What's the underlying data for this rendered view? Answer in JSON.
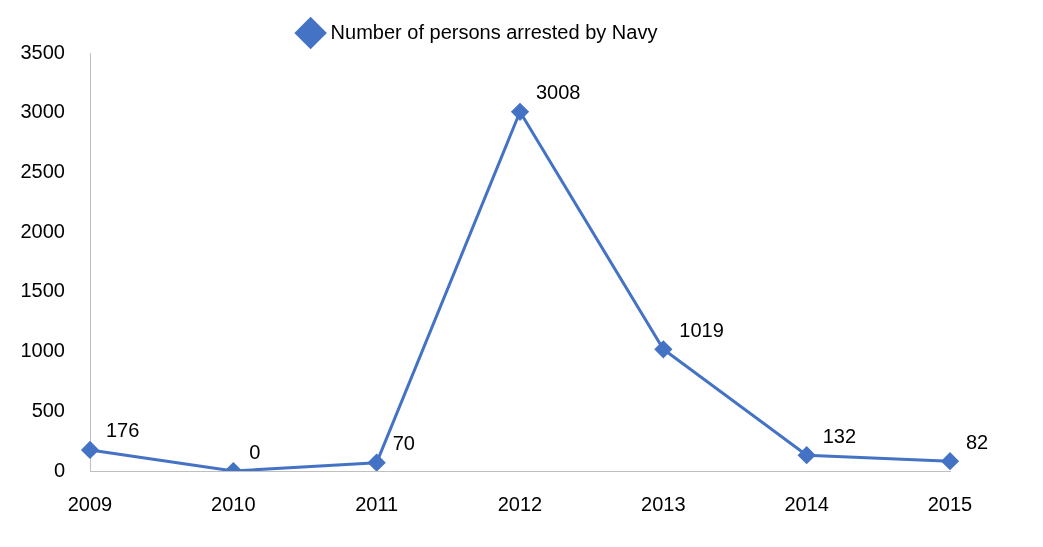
{
  "chart_data": {
    "type": "line",
    "categories": [
      "2009",
      "2010",
      "2011",
      "2012",
      "2013",
      "2014",
      "2015"
    ],
    "series": [
      {
        "name": "Number of persons arrested by Navy",
        "color": "#4472c4",
        "values": [
          176,
          0,
          70,
          3008,
          1019,
          132,
          82
        ]
      }
    ],
    "ylim": [
      0,
      3500
    ],
    "yticks": [
      0,
      500,
      1000,
      1500,
      2000,
      2500,
      3000,
      3500
    ],
    "grid": false,
    "legend": "top",
    "marker": "diamond",
    "line_style": "solid",
    "data_labels": true
  }
}
